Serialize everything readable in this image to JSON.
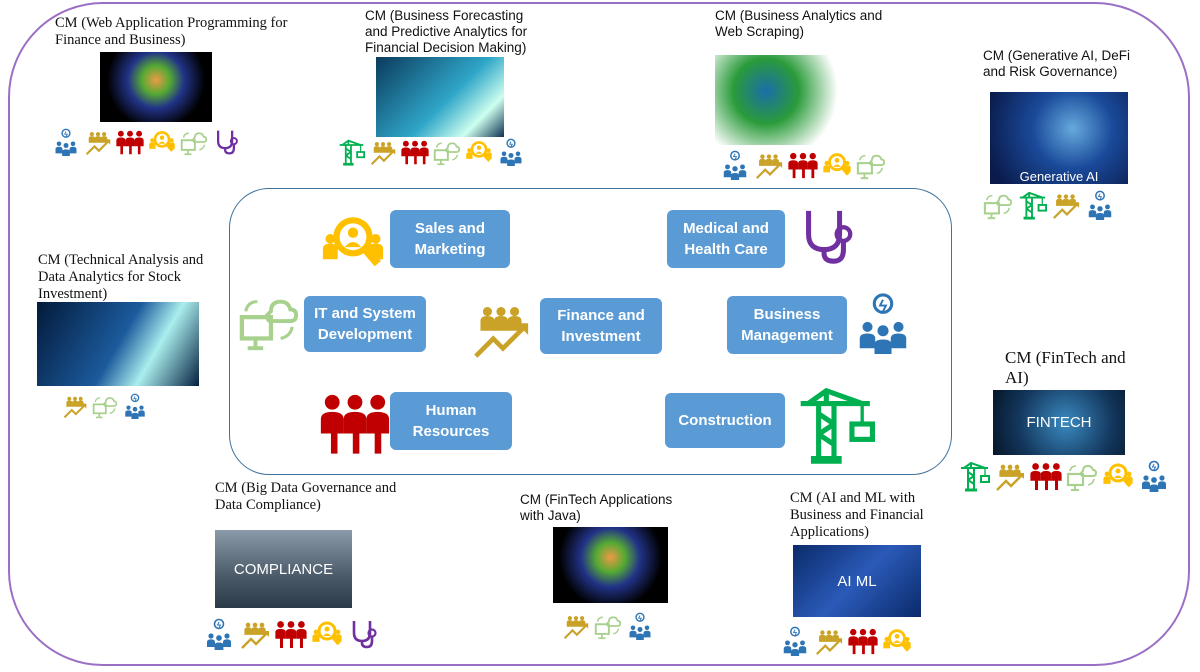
{
  "colors": {
    "border": "#9b6fc5",
    "box": "#5b9bd5",
    "management": "#2e75b6",
    "finance": "#c9a227",
    "hr": "#c00000",
    "sales": "#ffc000",
    "it": "#a9d18e",
    "medical": "#7030a0",
    "construction": "#00b050"
  },
  "categories": [
    {
      "id": "sales",
      "label": "Sales and Marketing",
      "icon": "sales-magnifier-icon"
    },
    {
      "id": "med",
      "label": "Medical and Health Care",
      "icon": "stethoscope-icon"
    },
    {
      "id": "it",
      "label": "IT and System Development",
      "icon": "monitor-cloud-icon"
    },
    {
      "id": "fin",
      "label": "Finance and Investment",
      "icon": "people-growth-icon"
    },
    {
      "id": "mgmt",
      "label": "Business Management",
      "icon": "team-lightbulb-icon"
    },
    {
      "id": "hr",
      "label": "Human Resources",
      "icon": "people-group-icon"
    },
    {
      "id": "con",
      "label": "Construction",
      "icon": "crane-icon"
    }
  ],
  "modules": [
    {
      "title": "CM (Web Application Programming for Finance and Business)",
      "image_text": "",
      "icons": [
        "mgmt",
        "fin",
        "hr",
        "sales",
        "it",
        "med"
      ]
    },
    {
      "title": "CM (Business Forecasting and Predictive Analytics for Financial Decision Making)",
      "image_text": "",
      "icons": [
        "con",
        "fin",
        "hr",
        "it",
        "sales",
        "mgmt"
      ]
    },
    {
      "title": "CM (Business Analytics and Web Scraping)",
      "image_text": "",
      "icons": [
        "mgmt",
        "fin",
        "hr",
        "sales",
        "it"
      ]
    },
    {
      "title": "CM (Generative AI, DeFi and Risk Governance)",
      "image_text": "Generative AI",
      "icons": [
        "it",
        "con",
        "fin",
        "mgmt"
      ]
    },
    {
      "title": "CM (Technical Analysis and Data Analytics for Stock Investment)",
      "image_text": "",
      "icons": [
        "fin",
        "it",
        "mgmt"
      ]
    },
    {
      "title": "CM (FinTech and AI)",
      "image_text": "FINTECH",
      "icons": [
        "con",
        "fin",
        "hr",
        "it",
        "sales",
        "mgmt"
      ]
    },
    {
      "title": "CM (Big Data Governance and Data Compliance)",
      "image_text": "COMPLIANCE",
      "icons": [
        "mgmt",
        "fin",
        "hr",
        "sales",
        "med"
      ]
    },
    {
      "title": "CM (FinTech Applications with Java)",
      "image_text": "",
      "icons": [
        "fin",
        "it",
        "mgmt"
      ]
    },
    {
      "title": "CM (AI and ML with Business and Financial Applications)",
      "image_text": "AI ML",
      "icons": [
        "mgmt",
        "fin",
        "hr",
        "sales"
      ]
    }
  ]
}
